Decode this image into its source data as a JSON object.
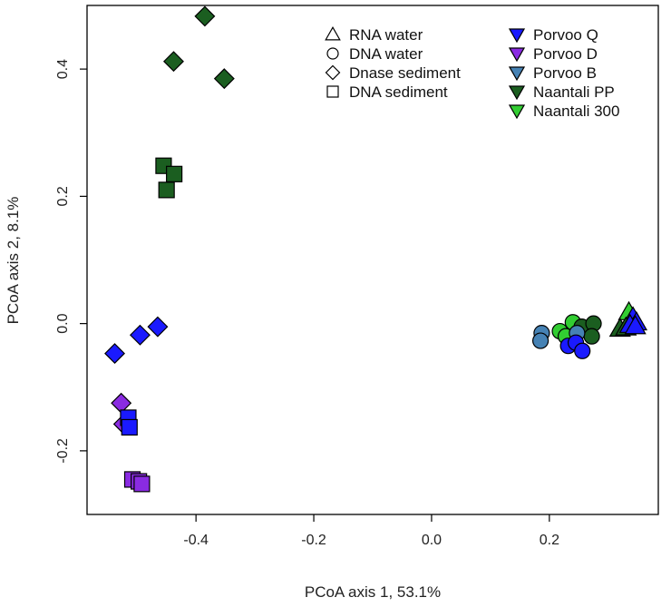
{
  "chart_data": {
    "type": "scatter",
    "xlabel": "PCoA axis 1, 53.1%",
    "ylabel": "PCoA axis 2, 8.1%",
    "xlim": [
      -0.585,
      0.385
    ],
    "ylim": [
      -0.3,
      0.5
    ],
    "x_ticks": [
      "-0.4",
      "-0.2",
      "0.0",
      "0.2"
    ],
    "x_tick_values": [
      -0.4,
      -0.2,
      0.0,
      0.2
    ],
    "y_ticks": [
      "-0.2",
      "0.0",
      "0.2",
      "0.4"
    ],
    "y_tick_values": [
      -0.2,
      0.0,
      0.2,
      0.4
    ],
    "grid": false,
    "legend_placement": "top-right",
    "shape_legend": [
      {
        "label": "RNA water",
        "shape": "triangle"
      },
      {
        "label": "DNA water",
        "shape": "circle"
      },
      {
        "label": "Dnase sediment",
        "shape": "diamond"
      },
      {
        "label": "DNA sediment",
        "shape": "square"
      }
    ],
    "color_legend": [
      {
        "label": "Porvoo Q",
        "color": "#1a1aff"
      },
      {
        "label": "Porvoo D",
        "color": "#8a2be2"
      },
      {
        "label": "Porvoo B",
        "color": "#4682b4"
      },
      {
        "label": "Naantali PP",
        "color": "#1b5e20"
      },
      {
        "label": "Naantali 300",
        "color": "#32cd32"
      }
    ],
    "points": [
      {
        "x": -0.385,
        "y": 0.483,
        "shape": "diamond",
        "color": "#1b5e20"
      },
      {
        "x": -0.438,
        "y": 0.412,
        "shape": "diamond",
        "color": "#1b5e20"
      },
      {
        "x": -0.352,
        "y": 0.385,
        "shape": "diamond",
        "color": "#1b5e20"
      },
      {
        "x": -0.455,
        "y": 0.248,
        "shape": "square",
        "color": "#1b5e20"
      },
      {
        "x": -0.437,
        "y": 0.235,
        "shape": "square",
        "color": "#1b5e20"
      },
      {
        "x": -0.45,
        "y": 0.21,
        "shape": "square",
        "color": "#1b5e20"
      },
      {
        "x": -0.465,
        "y": -0.005,
        "shape": "diamond",
        "color": "#1a1aff"
      },
      {
        "x": -0.495,
        "y": -0.018,
        "shape": "diamond",
        "color": "#1a1aff"
      },
      {
        "x": -0.538,
        "y": -0.047,
        "shape": "diamond",
        "color": "#1a1aff"
      },
      {
        "x": -0.527,
        "y": -0.125,
        "shape": "diamond",
        "color": "#8a2be2"
      },
      {
        "x": -0.523,
        "y": -0.158,
        "shape": "diamond",
        "color": "#8a2be2"
      },
      {
        "x": -0.515,
        "y": -0.148,
        "shape": "square",
        "color": "#1a1aff"
      },
      {
        "x": -0.513,
        "y": -0.163,
        "shape": "square",
        "color": "#1a1aff"
      },
      {
        "x": -0.508,
        "y": -0.245,
        "shape": "square",
        "color": "#8a2be2"
      },
      {
        "x": -0.497,
        "y": -0.248,
        "shape": "square",
        "color": "#8a2be2"
      },
      {
        "x": -0.492,
        "y": -0.252,
        "shape": "square",
        "color": "#8a2be2"
      },
      {
        "x": 0.187,
        "y": -0.015,
        "shape": "circle",
        "color": "#4682b4"
      },
      {
        "x": 0.185,
        "y": -0.027,
        "shape": "circle",
        "color": "#4682b4"
      },
      {
        "x": 0.218,
        "y": -0.012,
        "shape": "circle",
        "color": "#32cd32"
      },
      {
        "x": 0.24,
        "y": 0.002,
        "shape": "circle",
        "color": "#32cd32"
      },
      {
        "x": 0.228,
        "y": -0.02,
        "shape": "circle",
        "color": "#32cd32"
      },
      {
        "x": 0.255,
        "y": -0.005,
        "shape": "circle",
        "color": "#1b5e20"
      },
      {
        "x": 0.275,
        "y": 0.0,
        "shape": "circle",
        "color": "#1b5e20"
      },
      {
        "x": 0.272,
        "y": -0.02,
        "shape": "circle",
        "color": "#1b5e20"
      },
      {
        "x": 0.247,
        "y": -0.015,
        "shape": "circle",
        "color": "#4682b4"
      },
      {
        "x": 0.232,
        "y": -0.035,
        "shape": "circle",
        "color": "#1a1aff"
      },
      {
        "x": 0.245,
        "y": -0.03,
        "shape": "circle",
        "color": "#1a1aff"
      },
      {
        "x": 0.256,
        "y": -0.043,
        "shape": "circle",
        "color": "#1a1aff"
      },
      {
        "x": 0.335,
        "y": 0.018,
        "shape": "triangle",
        "color": "#32cd32"
      },
      {
        "x": 0.342,
        "y": 0.01,
        "shape": "triangle",
        "color": "#1a1aff"
      },
      {
        "x": 0.348,
        "y": 0.002,
        "shape": "triangle",
        "color": "#1a1aff"
      },
      {
        "x": 0.32,
        "y": -0.008,
        "shape": "triangle",
        "color": "#1b5e20"
      },
      {
        "x": 0.33,
        "y": -0.006,
        "shape": "triangle",
        "color": "#1b5e20"
      },
      {
        "x": 0.337,
        "y": -0.002,
        "shape": "triangle",
        "color": "#1a1aff"
      },
      {
        "x": 0.346,
        "y": -0.004,
        "shape": "triangle",
        "color": "#1a1aff"
      }
    ]
  }
}
